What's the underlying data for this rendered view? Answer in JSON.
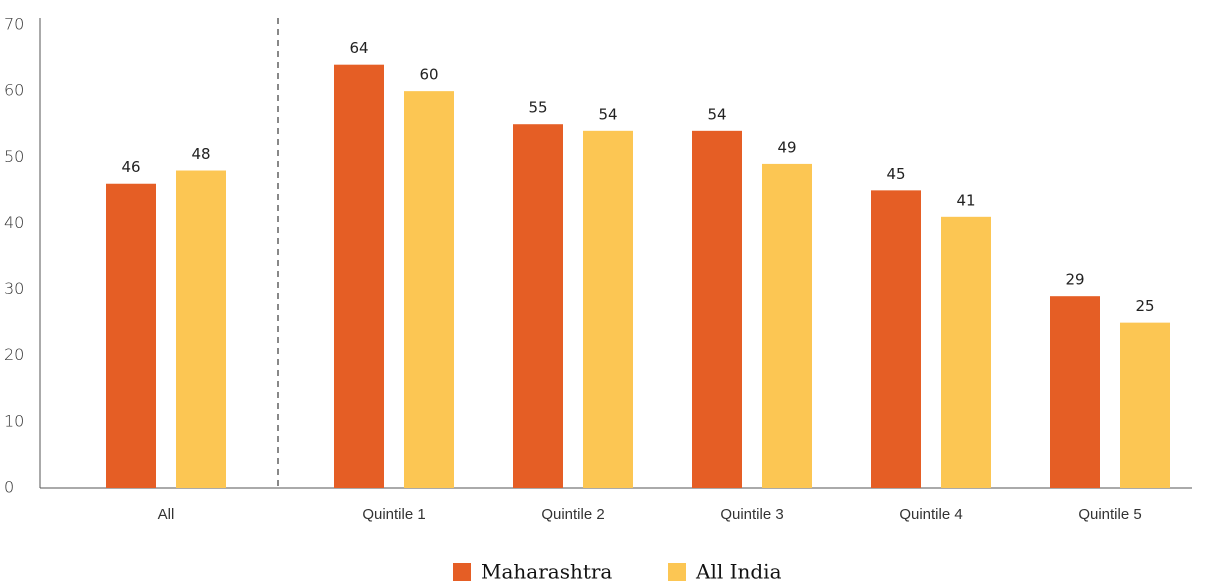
{
  "chart_data": {
    "type": "bar",
    "categories": [
      "All",
      "Quintile 1",
      "Quintile 2",
      "Quintile 3",
      "Quintile 4",
      "Quintile 5"
    ],
    "series": [
      {
        "name": "Maharashtra",
        "color": "#e55e25",
        "values": [
          46,
          64,
          55,
          54,
          45,
          29
        ]
      },
      {
        "name": "All India",
        "color": "#fcc653",
        "values": [
          48,
          60,
          54,
          49,
          41,
          25
        ]
      }
    ],
    "ylim": [
      0,
      70
    ],
    "yticks": [
      0,
      10,
      20,
      30,
      40,
      50,
      60,
      70
    ],
    "grid": false
  }
}
